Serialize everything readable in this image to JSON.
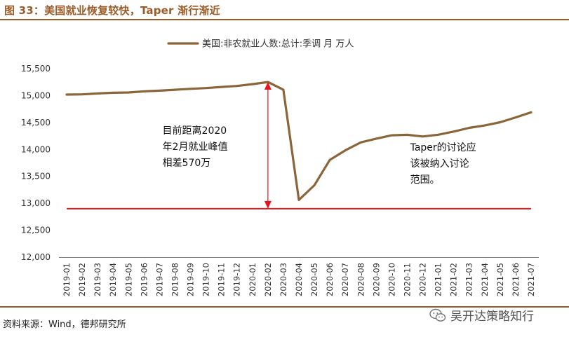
{
  "figure": {
    "title": "图 33：美国就业恢复较快，Taper 渐行渐近",
    "source": "资料来源：Wind，德邦研究所",
    "watermark": "吴开达策略知行"
  },
  "colors": {
    "accent": "#9c5b26",
    "series": "#8b6539",
    "reference": "#e8141b"
  },
  "chart_data": {
    "type": "line",
    "legend_position": "top-center",
    "grid": false,
    "ylim": [
      12000,
      15500
    ],
    "yticks": [
      "12,000",
      "12,500",
      "13,000",
      "13,500",
      "14,000",
      "14,500",
      "15,000",
      "15,500"
    ],
    "ytick_values": [
      12000,
      12500,
      13000,
      13500,
      14000,
      14500,
      15000,
      15500
    ],
    "categories": [
      "2019-01",
      "2019-02",
      "2019-03",
      "2019-04",
      "2019-05",
      "2019-06",
      "2019-07",
      "2019-08",
      "2019-09",
      "2019-10",
      "2019-11",
      "2019-12",
      "2020-01",
      "2020-02",
      "2020-03",
      "2020-04",
      "2020-05",
      "2020-06",
      "2020-07",
      "2020-08",
      "2020-09",
      "2020-10",
      "2020-11",
      "2020-12",
      "2021-01",
      "2021-02",
      "2021-03",
      "2021-04",
      "2021-05",
      "2021-06",
      "2021-07"
    ],
    "series": [
      {
        "name": "美国:非农就业人数:总计:季调 月 万人",
        "values": [
          15018,
          15022,
          15040,
          15052,
          15058,
          15078,
          15092,
          15108,
          15125,
          15140,
          15160,
          15178,
          15212,
          15252,
          15109,
          13062,
          13335,
          13806,
          13983,
          14131,
          14200,
          14262,
          14272,
          14240,
          14273,
          14331,
          14401,
          14445,
          14504,
          14594,
          14690
        ]
      }
    ],
    "reference_line": {
      "value": 12900,
      "start": "2019-01",
      "end": "2021-07"
    },
    "gap_arrow": {
      "category": "2020-02",
      "from": 15252,
      "to": 12900
    },
    "annotations": [
      {
        "id": "gap",
        "lines": [
          "目前距离2020",
          "年2月就业峰值",
          "相差570万"
        ],
        "category": "2019-09",
        "value": 14290
      },
      {
        "id": "taper",
        "lines": [
          "Taper的讨论应",
          "该被纳入讨论",
          "范围。"
        ],
        "category": "2021-01",
        "value": 13980
      }
    ]
  }
}
